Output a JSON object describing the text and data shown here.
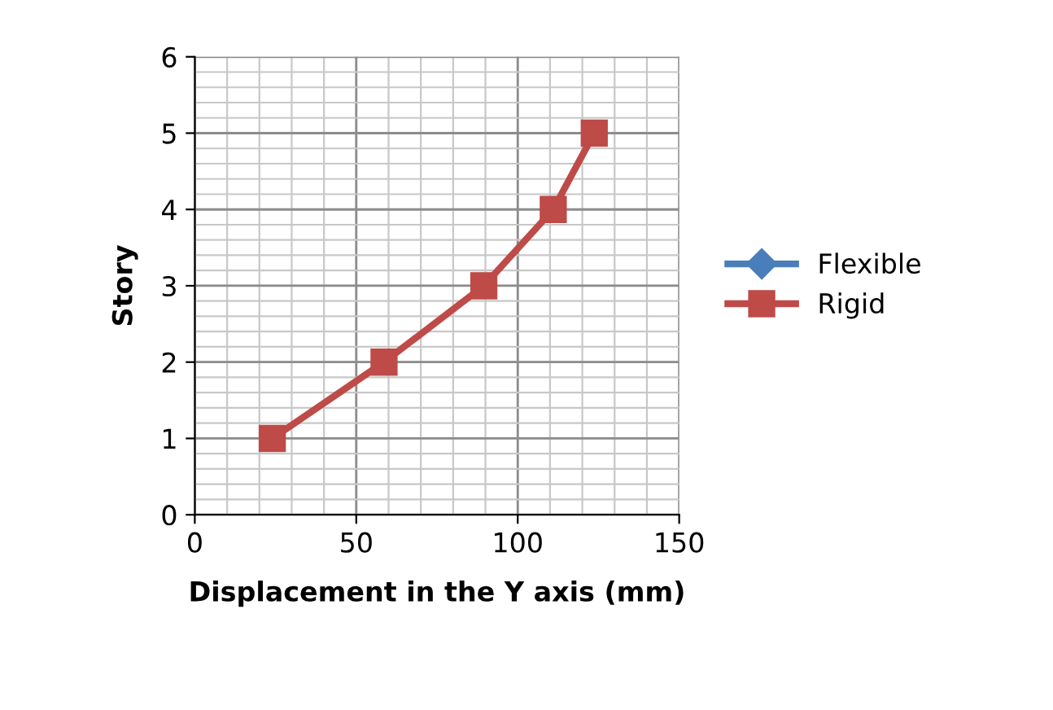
{
  "chart_data": {
    "type": "line",
    "xlabel": "Displacement in the Y axis (mm)",
    "ylabel": "Story",
    "xlim": [
      0,
      150
    ],
    "xticks": [
      0,
      50,
      100,
      150
    ],
    "ylim": [
      0,
      6
    ],
    "yticks": [
      0,
      1,
      2,
      3,
      4,
      5,
      6
    ],
    "grid": true,
    "legend": "right",
    "x": [
      24,
      58.6,
      89.5,
      111,
      123.7
    ],
    "series": [
      {
        "name": "Flexible",
        "color": "#4a7ebb",
        "marker": "diamond",
        "values": [
          null,
          null,
          null,
          null,
          null
        ]
      },
      {
        "name": "Rigid",
        "color": "#be4b48",
        "marker": "square",
        "values": [
          1,
          2,
          3,
          4,
          5
        ]
      }
    ]
  }
}
